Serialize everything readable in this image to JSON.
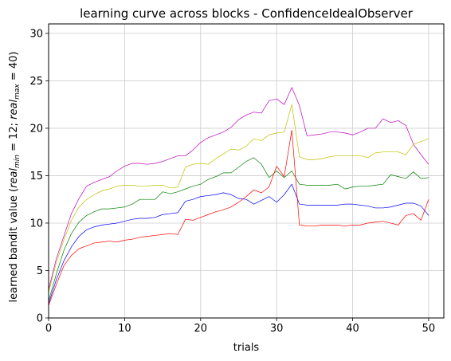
{
  "chart_data": {
    "type": "line",
    "title": "learning curve across blocks - ConfidenceIdealObserver",
    "xlabel": "trials",
    "ylabel": "learned bandit value (",
    "ylabel_math": {
      "sym1": "real",
      "sub1": "min",
      "eq1": " = 12; ",
      "sym2": "real",
      "sub2": "max",
      "eq2": " = 40)"
    },
    "xlim": [
      0,
      52
    ],
    "ylim": [
      0,
      31
    ],
    "xticks": [
      0,
      10,
      20,
      30,
      40,
      50
    ],
    "yticks": [
      0,
      5,
      10,
      15,
      20,
      25,
      30
    ],
    "grid": true,
    "x": [
      0,
      1,
      2,
      3,
      4,
      5,
      6,
      7,
      8,
      9,
      10,
      11,
      12,
      13,
      14,
      15,
      16,
      17,
      18,
      19,
      20,
      21,
      22,
      23,
      24,
      25,
      26,
      27,
      28,
      29,
      30,
      31,
      32,
      33,
      34,
      35,
      36,
      37,
      38,
      39,
      40,
      41,
      42,
      43,
      44,
      45,
      46,
      47,
      48,
      49,
      50
    ],
    "series": [
      {
        "color": "#bf00bf",
        "values": [
          3.0,
          6.2,
          8.6,
          11.0,
          12.6,
          13.9,
          14.3,
          14.6,
          14.9,
          15.5,
          16.0,
          16.3,
          16.3,
          16.2,
          16.3,
          16.5,
          16.8,
          17.1,
          17.1,
          17.7,
          18.5,
          19.0,
          19.3,
          19.6,
          20.1,
          20.9,
          21.4,
          21.7,
          21.6,
          22.9,
          23.1,
          22.5,
          24.3,
          22.4,
          19.2,
          19.3,
          19.4,
          19.6,
          19.6,
          19.5,
          19.3,
          19.6,
          20.0,
          20.0,
          21.0,
          20.6,
          20.8,
          20.3,
          18.3,
          17.2,
          16.2
        ]
      },
      {
        "color": "#bfbf00",
        "values": [
          2.7,
          5.8,
          8.2,
          10.3,
          11.7,
          12.5,
          13.0,
          13.4,
          13.6,
          13.9,
          14.0,
          14.0,
          13.9,
          13.9,
          14.0,
          14.0,
          13.7,
          13.8,
          15.9,
          16.2,
          16.3,
          16.2,
          16.8,
          17.3,
          17.8,
          17.7,
          18.1,
          18.9,
          18.7,
          19.3,
          19.5,
          19.6,
          22.5,
          17.0,
          16.7,
          16.7,
          16.8,
          17.0,
          17.1,
          17.1,
          17.1,
          17.1,
          16.9,
          17.4,
          17.5,
          17.5,
          17.5,
          17.2,
          18.3,
          18.6,
          18.9
        ]
      },
      {
        "color": "#008000",
        "values": [
          1.8,
          4.6,
          7.1,
          8.9,
          10.1,
          10.8,
          11.2,
          11.5,
          11.5,
          11.6,
          11.7,
          12.0,
          12.5,
          12.5,
          12.5,
          13.3,
          13.1,
          13.3,
          13.6,
          13.9,
          14.1,
          14.6,
          14.9,
          15.3,
          15.3,
          15.9,
          16.5,
          16.9,
          16.2,
          14.8,
          15.5,
          14.8,
          15.5,
          14.1,
          14.0,
          14.0,
          14.0,
          14.0,
          14.1,
          13.6,
          13.8,
          13.9,
          13.9,
          14.0,
          14.1,
          15.1,
          14.9,
          14.7,
          15.4,
          14.7,
          14.8
        ]
      },
      {
        "color": "#0000ff",
        "values": [
          1.5,
          4.0,
          6.0,
          7.5,
          8.6,
          9.3,
          9.6,
          9.8,
          9.9,
          10.0,
          10.2,
          10.4,
          10.5,
          10.5,
          10.6,
          10.9,
          11.0,
          11.1,
          12.3,
          12.5,
          12.8,
          12.9,
          13.0,
          13.2,
          13.0,
          12.6,
          12.5,
          12.0,
          12.4,
          12.8,
          12.2,
          13.0,
          14.1,
          12.0,
          11.9,
          11.9,
          11.9,
          11.9,
          11.9,
          12.0,
          12.0,
          11.9,
          11.8,
          11.6,
          11.6,
          11.7,
          11.9,
          12.1,
          12.1,
          11.8,
          10.8
        ]
      },
      {
        "color": "#ff0000",
        "values": [
          1.3,
          3.5,
          5.5,
          6.6,
          7.3,
          7.6,
          7.9,
          8.0,
          8.1,
          8.0,
          8.2,
          8.3,
          8.5,
          8.6,
          8.7,
          8.8,
          8.9,
          8.8,
          10.4,
          10.3,
          10.6,
          10.9,
          11.2,
          11.4,
          11.7,
          12.2,
          12.8,
          13.5,
          13.2,
          13.8,
          16.0,
          14.9,
          19.8,
          9.8,
          9.7,
          9.7,
          9.8,
          9.8,
          9.8,
          9.7,
          9.8,
          9.8,
          10.0,
          10.1,
          10.2,
          10.0,
          9.8,
          10.8,
          11.0,
          10.3,
          12.5
        ]
      }
    ]
  }
}
